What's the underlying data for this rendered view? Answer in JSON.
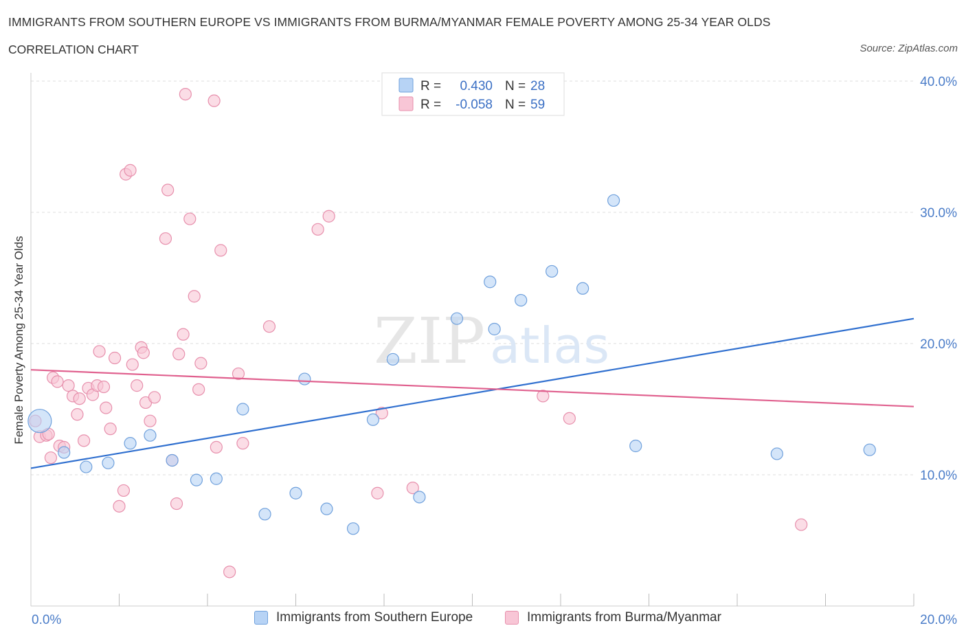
{
  "header": {
    "title": "IMMIGRANTS FROM SOUTHERN EUROPE VS IMMIGRANTS FROM BURMA/MYANMAR FEMALE POVERTY AMONG 25-34 YEAR OLDS",
    "subtitle": "CORRELATION CHART",
    "source": "Source: ZipAtlas.com"
  },
  "colors": {
    "blue_fill": "#b7d3f5",
    "blue_stroke": "#6fa0dc",
    "blue_line": "#2f6fcf",
    "pink_fill": "#f8c6d6",
    "pink_stroke": "#e78fac",
    "pink_line": "#e0608e",
    "grid": "#dddddd",
    "axis_text": "#4a7cc8"
  },
  "watermark": {
    "zip": "ZIP",
    "atlas": "atlas"
  },
  "chart_data": {
    "type": "scatter",
    "ylabel": "Female Poverty Among 25-34 Year Olds",
    "xlim": [
      0,
      20
    ],
    "ylim": [
      0,
      40
    ],
    "x_tick_labels": {
      "min": "0.0%",
      "max": "20.0%"
    },
    "y_ticks": [
      10,
      20,
      30,
      40
    ],
    "y_tick_labels": [
      "10.0%",
      "20.0%",
      "30.0%",
      "40.0%"
    ],
    "grid": true,
    "legend_position": "top-center",
    "stats_legend": [
      {
        "r_label": "R =",
        "r_value": "0.430",
        "n_label": "N =",
        "n_value": "28"
      },
      {
        "r_label": "R =",
        "r_value": "-0.058",
        "n_label": "N =",
        "n_value": "59"
      }
    ],
    "series": [
      {
        "name": "Immigrants from Southern Europe",
        "trend": {
          "x": [
            0,
            20
          ],
          "y": [
            10.5,
            21.9
          ]
        },
        "points": [
          {
            "x": 0.2,
            "y": 14.1,
            "big": true
          },
          {
            "x": 0.75,
            "y": 11.7
          },
          {
            "x": 1.25,
            "y": 10.6
          },
          {
            "x": 1.75,
            "y": 10.9
          },
          {
            "x": 2.25,
            "y": 12.4
          },
          {
            "x": 2.7,
            "y": 13.0
          },
          {
            "x": 3.2,
            "y": 11.1
          },
          {
            "x": 3.75,
            "y": 9.6
          },
          {
            "x": 4.2,
            "y": 9.7
          },
          {
            "x": 4.8,
            "y": 15.0
          },
          {
            "x": 5.3,
            "y": 7.0
          },
          {
            "x": 6.0,
            "y": 8.6
          },
          {
            "x": 6.2,
            "y": 17.3
          },
          {
            "x": 6.7,
            "y": 7.4
          },
          {
            "x": 7.3,
            "y": 5.9
          },
          {
            "x": 7.75,
            "y": 14.2
          },
          {
            "x": 8.2,
            "y": 18.8
          },
          {
            "x": 8.8,
            "y": 8.3
          },
          {
            "x": 9.65,
            "y": 21.9
          },
          {
            "x": 10.4,
            "y": 24.7
          },
          {
            "x": 10.5,
            "y": 21.1
          },
          {
            "x": 11.1,
            "y": 23.3
          },
          {
            "x": 11.8,
            "y": 25.5
          },
          {
            "x": 12.5,
            "y": 24.2
          },
          {
            "x": 13.2,
            "y": 30.9
          },
          {
            "x": 13.7,
            "y": 12.2
          },
          {
            "x": 16.9,
            "y": 11.6
          },
          {
            "x": 19.0,
            "y": 11.9
          }
        ]
      },
      {
        "name": "Immigrants from Burma/Myanmar",
        "trend": {
          "x": [
            0,
            20
          ],
          "y": [
            18.0,
            15.2
          ]
        },
        "points": [
          {
            "x": 0.1,
            "y": 14.1
          },
          {
            "x": 0.2,
            "y": 12.9
          },
          {
            "x": 0.35,
            "y": 13.0
          },
          {
            "x": 0.4,
            "y": 13.1
          },
          {
            "x": 0.45,
            "y": 11.3
          },
          {
            "x": 0.5,
            "y": 17.4
          },
          {
            "x": 0.6,
            "y": 17.1
          },
          {
            "x": 0.65,
            "y": 12.2
          },
          {
            "x": 0.75,
            "y": 12.1
          },
          {
            "x": 0.85,
            "y": 16.8
          },
          {
            "x": 0.95,
            "y": 16.0
          },
          {
            "x": 1.05,
            "y": 14.6
          },
          {
            "x": 1.1,
            "y": 15.8
          },
          {
            "x": 1.2,
            "y": 12.6
          },
          {
            "x": 1.3,
            "y": 16.6
          },
          {
            "x": 1.4,
            "y": 16.1
          },
          {
            "x": 1.5,
            "y": 16.8
          },
          {
            "x": 1.55,
            "y": 19.4
          },
          {
            "x": 1.65,
            "y": 16.7
          },
          {
            "x": 1.7,
            "y": 15.1
          },
          {
            "x": 1.8,
            "y": 13.5
          },
          {
            "x": 1.9,
            "y": 18.9
          },
          {
            "x": 2.0,
            "y": 7.6
          },
          {
            "x": 2.1,
            "y": 8.8
          },
          {
            "x": 2.15,
            "y": 32.9
          },
          {
            "x": 2.25,
            "y": 33.2
          },
          {
            "x": 2.3,
            "y": 18.4
          },
          {
            "x": 2.4,
            "y": 16.8
          },
          {
            "x": 2.5,
            "y": 19.7
          },
          {
            "x": 2.55,
            "y": 19.3
          },
          {
            "x": 2.6,
            "y": 15.5
          },
          {
            "x": 2.7,
            "y": 14.1
          },
          {
            "x": 2.8,
            "y": 15.9
          },
          {
            "x": 3.05,
            "y": 28.0
          },
          {
            "x": 3.1,
            "y": 31.7
          },
          {
            "x": 3.2,
            "y": 11.1
          },
          {
            "x": 3.3,
            "y": 7.8
          },
          {
            "x": 3.35,
            "y": 19.2
          },
          {
            "x": 3.45,
            "y": 20.7
          },
          {
            "x": 3.5,
            "y": 39.0
          },
          {
            "x": 3.6,
            "y": 29.5
          },
          {
            "x": 3.7,
            "y": 23.6
          },
          {
            "x": 3.8,
            "y": 16.5
          },
          {
            "x": 3.85,
            "y": 18.5
          },
          {
            "x": 4.15,
            "y": 38.5
          },
          {
            "x": 4.2,
            "y": 12.1
          },
          {
            "x": 4.3,
            "y": 27.1
          },
          {
            "x": 4.5,
            "y": 2.6
          },
          {
            "x": 4.7,
            "y": 17.7
          },
          {
            "x": 4.8,
            "y": 12.4
          },
          {
            "x": 5.4,
            "y": 21.3
          },
          {
            "x": 6.5,
            "y": 28.7
          },
          {
            "x": 6.75,
            "y": 29.7
          },
          {
            "x": 7.85,
            "y": 8.6
          },
          {
            "x": 7.95,
            "y": 14.7
          },
          {
            "x": 8.65,
            "y": 9.0
          },
          {
            "x": 11.6,
            "y": 16.0
          },
          {
            "x": 12.2,
            "y": 14.3
          },
          {
            "x": 17.45,
            "y": 6.2
          }
        ]
      }
    ]
  }
}
